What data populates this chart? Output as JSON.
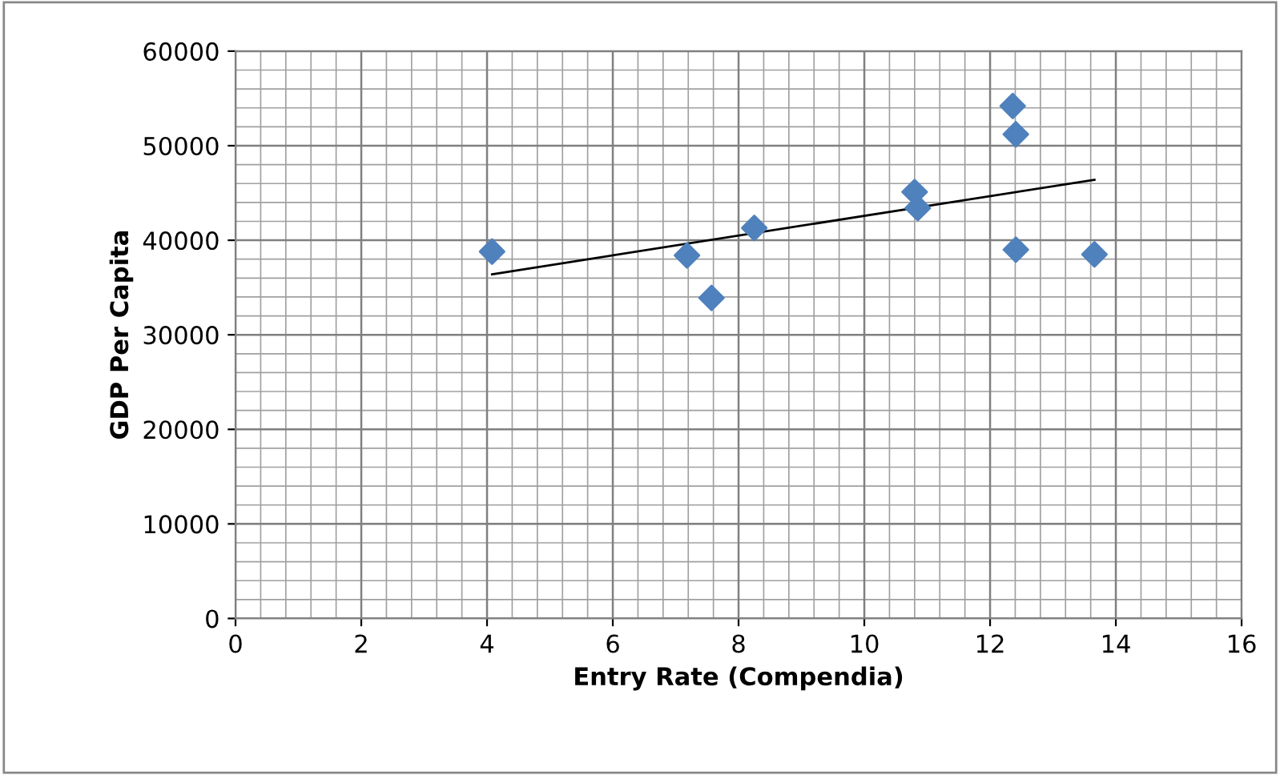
{
  "chart_data": {
    "type": "scatter",
    "xlabel": "Entry Rate (Compendia)",
    "ylabel": "GDP Per Capita",
    "xlim": [
      0,
      16
    ],
    "xticks": [
      0,
      2,
      4,
      6,
      8,
      10,
      12,
      14,
      16
    ],
    "ylim": [
      0,
      60000
    ],
    "yticks": [
      0,
      10000,
      20000,
      30000,
      40000,
      50000,
      60000
    ],
    "grid": true,
    "marker": "diamond",
    "legend": false,
    "series": [
      {
        "color": "#4f81bd",
        "x": [
          4.08,
          7.18,
          7.57,
          8.25,
          10.8,
          10.85,
          12.36,
          12.41,
          12.41,
          13.66
        ],
        "values": [
          38800,
          38400,
          33900,
          41300,
          45100,
          43400,
          54200,
          51200,
          39000,
          38500
        ]
      },
      {
        "type": "line",
        "color": "#000000",
        "marker": "none",
        "x": [
          4.08,
          13.66
        ],
        "values": [
          36400,
          46400
        ]
      }
    ]
  }
}
